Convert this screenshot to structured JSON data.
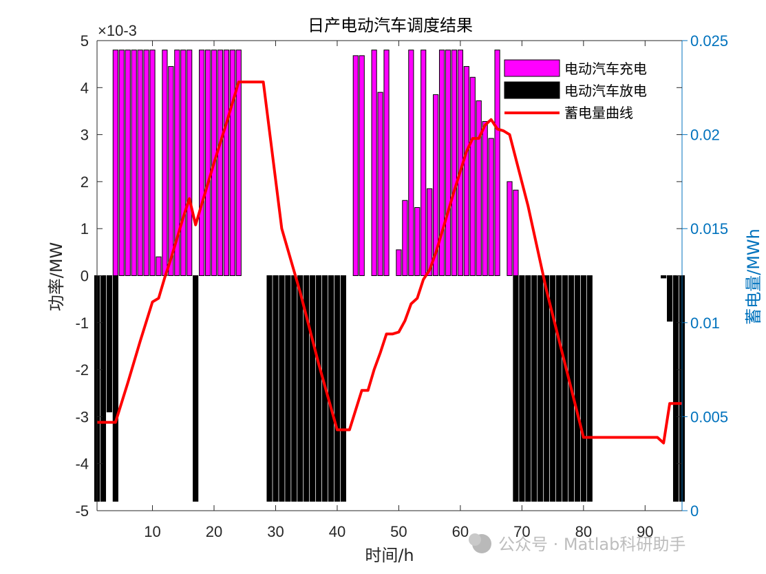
{
  "watermark": "公众号 · Matlab科研助手",
  "colors": {
    "charge": "#ff00ff",
    "discharge": "#000000",
    "energy": "#ff0000",
    "right_axis": "#0072bd",
    "axis": "#262626"
  },
  "chart_data": {
    "type": "bar+line",
    "title": "日产电动汽车调度结果",
    "xlabel": "时间/h",
    "ylabel": "功率/MW",
    "ylabel_right": "蓄电量/MWh",
    "y_exponent": "×10-3",
    "xlim": [
      1,
      96
    ],
    "ylim": [
      -5,
      5
    ],
    "ylim_right": [
      0,
      0.025
    ],
    "xticks": [
      10,
      20,
      30,
      40,
      50,
      60,
      70,
      80,
      90
    ],
    "yticks": [
      -5,
      -4,
      -3,
      -2,
      -1,
      0,
      1,
      2,
      3,
      4,
      5
    ],
    "yticks_right": [
      0,
      0.005,
      0.01,
      0.015,
      0.02,
      0.025
    ],
    "ytick_labels": [
      "-5",
      "-4",
      "-3",
      "-2",
      "-1",
      "0",
      "1",
      "2",
      "3",
      "4",
      "5"
    ],
    "ytick_labels_right": [
      "0",
      "0.005",
      "0.01",
      "0.015",
      "0.02",
      "0.025"
    ],
    "xtick_labels": [
      "10",
      "20",
      "30",
      "40",
      "50",
      "60",
      "70",
      "80",
      "90"
    ],
    "legend": [
      "电动汽车充电",
      "电动汽车放电",
      "蓄电量曲线"
    ],
    "legend_position": "top-right",
    "series": [
      {
        "name": "电动汽车充电",
        "unit": "1e-3 MW",
        "points": [
          [
            4,
            4.8
          ],
          [
            5,
            4.8
          ],
          [
            6,
            4.8
          ],
          [
            7,
            4.8
          ],
          [
            8,
            4.8
          ],
          [
            9,
            4.8
          ],
          [
            10,
            4.8
          ],
          [
            11,
            0.4
          ],
          [
            12,
            4.8
          ],
          [
            13,
            4.45
          ],
          [
            14,
            4.8
          ],
          [
            15,
            4.8
          ],
          [
            16,
            4.8
          ],
          [
            18,
            4.8
          ],
          [
            19,
            4.8
          ],
          [
            20,
            4.8
          ],
          [
            21,
            4.8
          ],
          [
            22,
            4.8
          ],
          [
            23,
            4.8
          ],
          [
            24,
            4.8
          ],
          [
            43,
            4.68
          ],
          [
            44,
            4.68
          ],
          [
            46,
            4.8
          ],
          [
            47,
            3.9
          ],
          [
            48,
            4.8
          ],
          [
            50,
            0.55
          ],
          [
            51,
            1.6
          ],
          [
            52,
            4.8
          ],
          [
            53,
            1.45
          ],
          [
            54,
            4.8
          ],
          [
            55,
            1.85
          ],
          [
            56,
            3.85
          ],
          [
            57,
            4.8
          ],
          [
            58,
            4.8
          ],
          [
            59,
            4.8
          ],
          [
            60,
            4.8
          ],
          [
            61,
            4.45
          ],
          [
            62,
            4.22
          ],
          [
            63,
            3.72
          ],
          [
            64,
            3.28
          ],
          [
            65,
            2.92
          ],
          [
            66,
            4.8
          ],
          [
            68,
            2.0
          ],
          [
            69,
            1.82
          ]
        ]
      },
      {
        "name": "电动汽车放电",
        "unit": "1e-3 MW",
        "points": [
          [
            1,
            -4.8
          ],
          [
            2,
            -4.8
          ],
          [
            3,
            -2.9
          ],
          [
            4,
            -4.8
          ],
          [
            17,
            -4.8
          ],
          [
            29,
            -4.8
          ],
          [
            30,
            -4.8
          ],
          [
            31,
            -4.8
          ],
          [
            32,
            -4.8
          ],
          [
            33,
            -4.8
          ],
          [
            34,
            -4.8
          ],
          [
            35,
            -4.8
          ],
          [
            36,
            -4.8
          ],
          [
            37,
            -4.8
          ],
          [
            38,
            -4.8
          ],
          [
            39,
            -4.8
          ],
          [
            40,
            -4.8
          ],
          [
            41,
            -4.8
          ],
          [
            69,
            -4.8
          ],
          [
            70,
            -4.8
          ],
          [
            71,
            -4.8
          ],
          [
            72,
            -4.8
          ],
          [
            73,
            -4.8
          ],
          [
            74,
            -4.8
          ],
          [
            75,
            -4.8
          ],
          [
            76,
            -4.8
          ],
          [
            77,
            -4.8
          ],
          [
            78,
            -4.8
          ],
          [
            79,
            -4.8
          ],
          [
            80,
            -4.8
          ],
          [
            81,
            -4.8
          ],
          [
            93,
            -0.05
          ],
          [
            94,
            -0.97
          ],
          [
            95,
            -4.8
          ],
          [
            96,
            -4.8
          ]
        ]
      },
      {
        "name": "蓄电量曲线",
        "unit": "MWh",
        "axis": "right",
        "points": [
          [
            1,
            0.0047
          ],
          [
            3,
            0.0047
          ],
          [
            4,
            0.0047
          ],
          [
            6,
            0.0068
          ],
          [
            8,
            0.009
          ],
          [
            10,
            0.0111
          ],
          [
            11,
            0.0113
          ],
          [
            12,
            0.0124
          ],
          [
            13,
            0.0134
          ],
          [
            14,
            0.0145
          ],
          [
            15,
            0.0156
          ],
          [
            16,
            0.0166
          ],
          [
            17,
            0.0152
          ],
          [
            18,
            0.0163
          ],
          [
            20,
            0.0185
          ],
          [
            22,
            0.0206
          ],
          [
            24,
            0.0228
          ],
          [
            25,
            0.0228
          ],
          [
            28,
            0.0228
          ],
          [
            31,
            0.015
          ],
          [
            34,
            0.0116
          ],
          [
            37,
            0.0078
          ],
          [
            40,
            0.0043
          ],
          [
            42,
            0.0043
          ],
          [
            44,
            0.0064
          ],
          [
            45,
            0.0064
          ],
          [
            46,
            0.0075
          ],
          [
            47,
            0.0084
          ],
          [
            48,
            0.0094
          ],
          [
            49,
            0.0094
          ],
          [
            50,
            0.0095
          ],
          [
            51,
            0.0101
          ],
          [
            52,
            0.011
          ],
          [
            53,
            0.0113
          ],
          [
            54,
            0.0123
          ],
          [
            55,
            0.0128
          ],
          [
            56,
            0.0137
          ],
          [
            57,
            0.0148
          ],
          [
            59,
            0.017
          ],
          [
            61,
            0.0191
          ],
          [
            62,
            0.0198
          ],
          [
            63,
            0.0198
          ],
          [
            64,
            0.0205
          ],
          [
            65,
            0.0208
          ],
          [
            66,
            0.0203
          ],
          [
            67,
            0.0202
          ],
          [
            68,
            0.02
          ],
          [
            71,
            0.0162
          ],
          [
            74,
            0.0117
          ],
          [
            77,
            0.0078
          ],
          [
            80,
            0.0039
          ],
          [
            81,
            0.0039
          ],
          [
            92,
            0.0039
          ],
          [
            93,
            0.0036
          ],
          [
            94,
            0.0057
          ],
          [
            95,
            0.0057
          ],
          [
            96,
            0.0057
          ]
        ]
      }
    ]
  }
}
